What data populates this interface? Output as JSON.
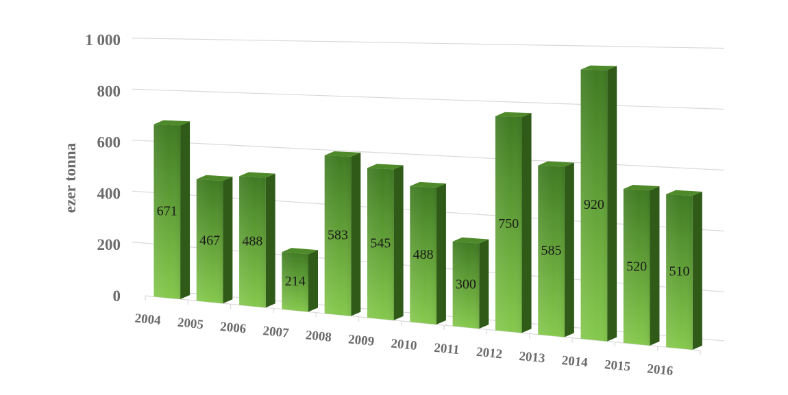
{
  "chart_data": {
    "type": "bar",
    "title": "",
    "xlabel": "",
    "ylabel": "ezer tonna",
    "categories": [
      "2004",
      "2005",
      "2006",
      "2007",
      "2008",
      "2009",
      "2010",
      "2011",
      "2012",
      "2013",
      "2014",
      "2015",
      "2016"
    ],
    "values": [
      671,
      467,
      488,
      214,
      583,
      545,
      488,
      300,
      750,
      585,
      920,
      520,
      510
    ],
    "ylim": [
      0,
      1000
    ],
    "yticks": [
      0,
      200,
      400,
      600,
      800,
      1000
    ],
    "ytick_labels": [
      "0",
      "200",
      "400",
      "600",
      "800",
      "1 000"
    ],
    "grid": true,
    "legend": "none",
    "style": "3d-perspective",
    "colors": {
      "bar_front_dark": "#3f7a22",
      "bar_front_light": "#7cc244",
      "bar_side": "#2f5a18",
      "bar_top": "#4f8a2a",
      "grid": "#d9d9d9",
      "text": "#6b6b6b"
    }
  }
}
